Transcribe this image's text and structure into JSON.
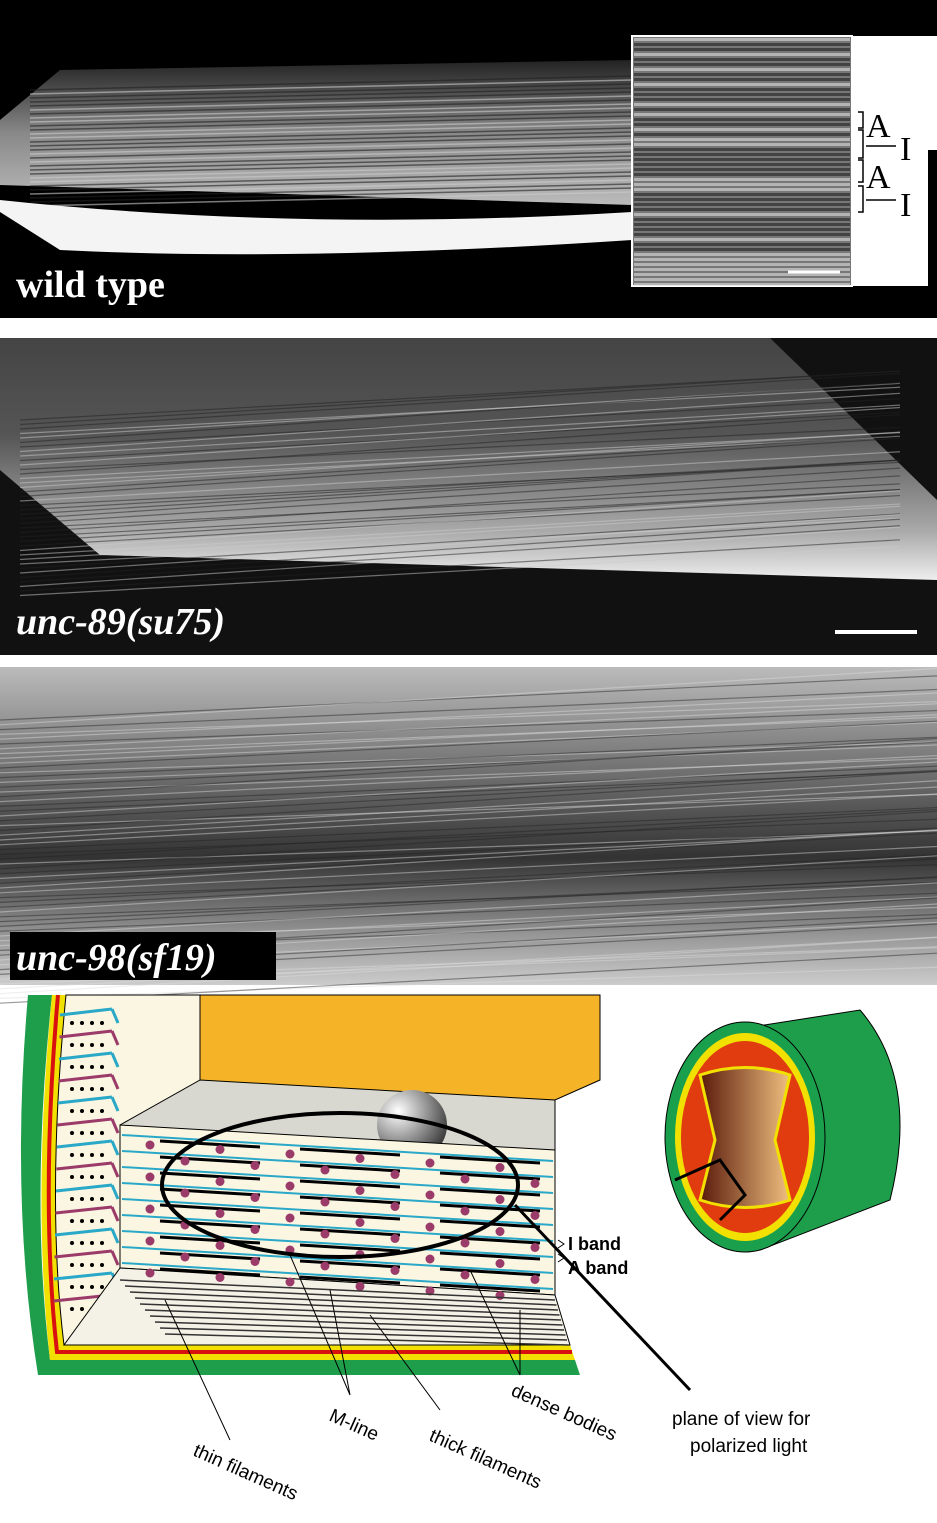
{
  "panels": [
    {
      "label": "wild type",
      "inset_labels": [
        "A",
        "I",
        "A",
        "I"
      ]
    },
    {
      "label": "unc-89(su75)"
    },
    {
      "label": "unc-98(sf19)"
    }
  ],
  "diagram": {
    "i_band": "I band",
    "a_band": "A band",
    "plane": [
      "plane of view for",
      "polarized light"
    ],
    "thin": "thin filaments",
    "mline": "M-line",
    "thick": "thick filaments",
    "dense": "dense bodies"
  }
}
